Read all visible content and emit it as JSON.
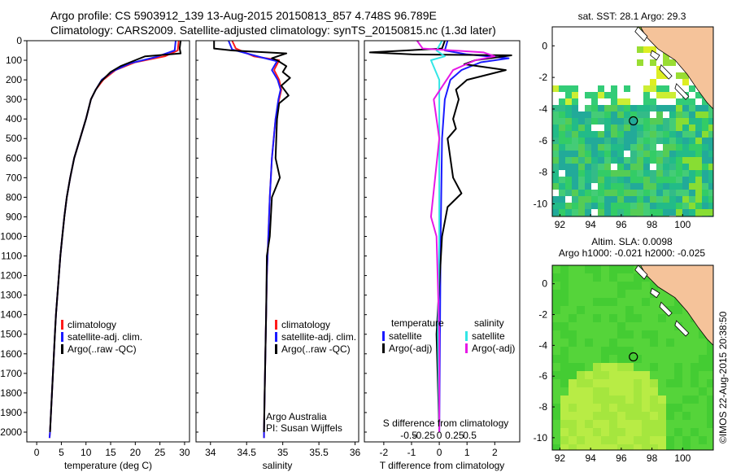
{
  "header": {
    "line1": "Argo profile: CS 5903912_139 13-Aug-2015 20150813_857 4.748S 96.789E",
    "line2": "Climatology: CARS2009. Satellite-adjusted climatology: synTS_20150815.nc (1.3d later)"
  },
  "colors": {
    "climatology": "#ff1a1a",
    "satellite": "#1a1aff",
    "argo": "#000000",
    "sal_satellite": "#33e6e6",
    "sal_argo": "#e619e6",
    "land": "#f5c39a",
    "sea_sst": "#22cc66",
    "sea_sla": "#55dd33",
    "sea_sla_light": "#c8f04a"
  },
  "chart_data": [
    {
      "type": "line",
      "name": "temperature-panel",
      "xlabel": "temperature (deg C)",
      "ylabel": "",
      "xlim": [
        -2,
        31
      ],
      "ylim": [
        2050,
        0
      ],
      "xticks": [
        "0",
        "5",
        "10",
        "15",
        "20",
        "25",
        "30"
      ],
      "xtick_values": [
        0,
        5,
        10,
        15,
        20,
        25,
        30
      ],
      "yticks": [
        "0",
        "100",
        "200",
        "300",
        "400",
        "500",
        "600",
        "700",
        "800",
        "900",
        "1000",
        "1100",
        "1200",
        "1300",
        "1400",
        "1500",
        "1600",
        "1700",
        "1800",
        "1900",
        "2000"
      ],
      "legend": [
        "climatology",
        "satellite-adj. clim.",
        "Argo(..raw -QC)"
      ],
      "series": [
        {
          "name": "climatology",
          "color": "#ff1a1a",
          "points": [
            [
              28.8,
              0
            ],
            [
              28.6,
              50
            ],
            [
              26,
              80
            ],
            [
              20,
              110
            ],
            [
              16,
              150
            ],
            [
              13.5,
              200
            ],
            [
              12,
              250
            ],
            [
              11,
              300
            ],
            [
              10,
              400
            ],
            [
              8.8,
              500
            ],
            [
              7.6,
              600
            ],
            [
              6.8,
              700
            ],
            [
              6.1,
              800
            ],
            [
              5.6,
              900
            ],
            [
              5.2,
              1000
            ],
            [
              4.8,
              1100
            ],
            [
              4.5,
              1200
            ],
            [
              4.2,
              1300
            ],
            [
              3.9,
              1400
            ],
            [
              3.7,
              1500
            ],
            [
              3.5,
              1600
            ],
            [
              3.3,
              1700
            ],
            [
              3.1,
              1800
            ],
            [
              2.9,
              1900
            ],
            [
              2.7,
              2000
            ],
            [
              2.6,
              2030
            ]
          ]
        },
        {
          "name": "satellite-adj. clim.",
          "color": "#1a1aff",
          "points": [
            [
              28.2,
              0
            ],
            [
              28,
              50
            ],
            [
              24,
              85
            ],
            [
              19,
              115
            ],
            [
              15.5,
              155
            ],
            [
              13.2,
              200
            ],
            [
              12,
              250
            ],
            [
              11,
              300
            ],
            [
              10,
              400
            ],
            [
              8.8,
              500
            ],
            [
              7.6,
              600
            ],
            [
              6.8,
              700
            ],
            [
              6.1,
              800
            ],
            [
              5.6,
              900
            ],
            [
              5.2,
              1000
            ],
            [
              4.8,
              1100
            ],
            [
              4.5,
              1200
            ],
            [
              4.2,
              1300
            ],
            [
              3.9,
              1400
            ],
            [
              3.7,
              1500
            ],
            [
              3.5,
              1600
            ],
            [
              3.3,
              1700
            ],
            [
              3.1,
              1800
            ],
            [
              2.9,
              1900
            ],
            [
              2.7,
              2000
            ],
            [
              2.6,
              2030
            ]
          ]
        },
        {
          "name": "Argo(..raw -QC)",
          "color": "#000000",
          "points": [
            [
              29.2,
              0
            ],
            [
              29,
              40
            ],
            [
              29.2,
              65
            ],
            [
              22,
              80
            ],
            [
              20,
              100
            ],
            [
              17,
              130
            ],
            [
              15,
              160
            ],
            [
              13,
              210
            ],
            [
              12,
              250
            ],
            [
              11,
              300
            ],
            [
              10,
              400
            ],
            [
              8.8,
              500
            ],
            [
              7.6,
              600
            ],
            [
              6.8,
              700
            ],
            [
              6.1,
              800
            ],
            [
              5.6,
              900
            ],
            [
              5.2,
              1000
            ],
            [
              4.8,
              1100
            ],
            [
              4.5,
              1200
            ],
            [
              4.2,
              1300
            ],
            [
              3.9,
              1400
            ],
            [
              3.7,
              1500
            ],
            [
              3.5,
              1600
            ],
            [
              3.3,
              1700
            ],
            [
              3.1,
              1800
            ],
            [
              2.9,
              1900
            ],
            [
              2.7,
              2000
            ]
          ]
        }
      ]
    },
    {
      "type": "line",
      "name": "salinity-panel",
      "xlabel": "salinity",
      "xlim": [
        33.8,
        36.05
      ],
      "ylim": [
        2050,
        0
      ],
      "xticks": [
        "34",
        "34.5",
        "35",
        "35.5",
        "36"
      ],
      "xtick_values": [
        34,
        34.5,
        35,
        35.5,
        36
      ],
      "legend": [
        "climatology",
        "satellite-adj. clim.",
        "Argo(..raw -QC)"
      ],
      "annotation": [
        "Argo Australia",
        "PI: Susan Wijffels"
      ],
      "series": [
        {
          "name": "climatology",
          "color": "#ff1a1a",
          "points": [
            [
              34.3,
              0
            ],
            [
              34.35,
              40
            ],
            [
              34.6,
              80
            ],
            [
              34.95,
              100
            ],
            [
              34.88,
              150
            ],
            [
              34.95,
              200
            ],
            [
              34.98,
              250
            ],
            [
              34.95,
              300
            ],
            [
              34.9,
              400
            ],
            [
              34.85,
              600
            ],
            [
              34.82,
              800
            ],
            [
              34.8,
              1000
            ],
            [
              34.78,
              1200
            ],
            [
              34.77,
              1400
            ],
            [
              34.76,
              1600
            ],
            [
              34.75,
              1800
            ],
            [
              34.74,
              2000
            ],
            [
              34.74,
              2030
            ]
          ]
        },
        {
          "name": "satellite-adj. clim.",
          "color": "#1a1aff",
          "points": [
            [
              34.25,
              0
            ],
            [
              34.3,
              45
            ],
            [
              34.7,
              85
            ],
            [
              34.92,
              105
            ],
            [
              34.85,
              150
            ],
            [
              34.93,
              200
            ],
            [
              34.97,
              250
            ],
            [
              34.94,
              300
            ],
            [
              34.9,
              400
            ],
            [
              34.85,
              600
            ],
            [
              34.82,
              800
            ],
            [
              34.8,
              1000
            ],
            [
              34.78,
              1200
            ],
            [
              34.77,
              1400
            ],
            [
              34.76,
              1600
            ],
            [
              34.75,
              1800
            ],
            [
              34.74,
              2000
            ],
            [
              34.74,
              2030
            ]
          ]
        },
        {
          "name": "Argo(..raw -QC)",
          "color": "#000000",
          "points": [
            [
              34.05,
              0
            ],
            [
              34.05,
              40
            ],
            [
              34.3,
              50
            ],
            [
              34.55,
              55
            ],
            [
              35.05,
              65
            ],
            [
              34.85,
              90
            ],
            [
              34.92,
              100
            ],
            [
              35.05,
              130
            ],
            [
              35.0,
              160
            ],
            [
              35.1,
              190
            ],
            [
              34.98,
              230
            ],
            [
              35.08,
              280
            ],
            [
              34.95,
              320
            ],
            [
              34.92,
              400
            ],
            [
              34.9,
              600
            ],
            [
              34.96,
              700
            ],
            [
              34.85,
              800
            ],
            [
              34.82,
              1000
            ],
            [
              34.78,
              1100
            ],
            [
              34.77,
              1400
            ],
            [
              34.76,
              1600
            ],
            [
              34.75,
              1800
            ],
            [
              34.74,
              2000
            ]
          ]
        }
      ]
    },
    {
      "type": "line",
      "name": "difference-panel",
      "xlabel": "T difference from climatology",
      "xlim": [
        -2.7,
        2.9
      ],
      "ylim": [
        2050,
        0
      ],
      "xticks": [
        "-2",
        "-1",
        "0",
        "1",
        "2"
      ],
      "xtick_values": [
        -2,
        -1,
        0,
        1,
        2
      ],
      "top_xlabel": "S difference from climatology",
      "top_xticks": [
        "-0.5",
        "-0.25",
        "0",
        "0.25",
        "0.5"
      ],
      "top_xtick_values": [
        -1.1,
        -0.55,
        0,
        0.55,
        1.1
      ],
      "legend_titles": [
        "temperature",
        "salinity"
      ],
      "legend_left": [
        "satellite",
        "Argo(-adj)"
      ],
      "legend_right": [
        "satellite",
        "Argo(-adj)"
      ],
      "series": [
        {
          "name": "temperature satellite",
          "color": "#1a1aff",
          "points": [
            [
              0.3,
              0
            ],
            [
              0.2,
              50
            ],
            [
              1.0,
              70
            ],
            [
              2.5,
              90
            ],
            [
              1.5,
              110
            ],
            [
              0.8,
              150
            ],
            [
              0.4,
              200
            ],
            [
              0.2,
              300
            ],
            [
              0.1,
              500
            ],
            [
              0.05,
              1000
            ],
            [
              0,
              2000
            ]
          ]
        },
        {
          "name": "temperature Argo(-adj)",
          "color": "#000000",
          "points": [
            [
              0.2,
              0
            ],
            [
              0.1,
              40
            ],
            [
              -2.5,
              60
            ],
            [
              -1,
              70
            ],
            [
              2.6,
              75
            ],
            [
              1.3,
              100
            ],
            [
              0.9,
              120
            ],
            [
              2.4,
              150
            ],
            [
              1.0,
              200
            ],
            [
              0.6,
              250
            ],
            [
              0.7,
              300
            ],
            [
              0.5,
              400
            ],
            [
              0.6,
              450
            ],
            [
              0.3,
              500
            ],
            [
              0.4,
              600
            ],
            [
              0.5,
              700
            ],
            [
              0.8,
              780
            ],
            [
              0.3,
              850
            ],
            [
              0.1,
              1000
            ],
            [
              -0.1,
              1500
            ],
            [
              0,
              2000
            ]
          ]
        },
        {
          "name": "salinity satellite",
          "color": "#33e6e6",
          "points": [
            [
              0.1,
              0
            ],
            [
              -0.1,
              50
            ],
            [
              0.2,
              80
            ],
            [
              -0.3,
              100
            ],
            [
              0,
              200
            ],
            [
              0,
              500
            ],
            [
              0,
              1000
            ],
            [
              -0.05,
              1500
            ],
            [
              0,
              2000
            ]
          ]
        },
        {
          "name": "salinity Argo(-adj)",
          "color": "#e619e6",
          "points": [
            [
              -0.8,
              0
            ],
            [
              -0.6,
              40
            ],
            [
              1.6,
              60
            ],
            [
              2.0,
              80
            ],
            [
              1.3,
              100
            ],
            [
              0.5,
              150
            ],
            [
              -0.2,
              300
            ],
            [
              0,
              500
            ],
            [
              -0.3,
              900
            ],
            [
              -0.1,
              1000
            ],
            [
              0,
              1500
            ],
            [
              0,
              2000
            ]
          ]
        }
      ]
    },
    {
      "type": "heatmap",
      "name": "sst-map",
      "title": "sat. SST: 28.1 Argo: 29.3",
      "xticks": [
        "92",
        "94",
        "96",
        "98",
        "100"
      ],
      "xtick_values": [
        92,
        94,
        96,
        98,
        100
      ],
      "yticks": [
        "0",
        "-2",
        "-4",
        "-6",
        "-8",
        "-10"
      ],
      "ytick_values": [
        0,
        -2,
        -4,
        -6,
        -8,
        -10
      ],
      "xlim": [
        91.5,
        102
      ],
      "ylim": [
        -10.8,
        1.2
      ],
      "marker": {
        "lon": 96.789,
        "lat": -4.748
      }
    },
    {
      "type": "heatmap",
      "name": "sla-map",
      "title": "Altim. SLA: 0.0098",
      "subtitle": "Argo h1000: -0.021 h2000: -0.025",
      "xticks": [
        "92",
        "94",
        "96",
        "98",
        "100"
      ],
      "xtick_values": [
        92,
        94,
        96,
        98,
        100
      ],
      "yticks": [
        "0",
        "-2",
        "-4",
        "-6",
        "-8",
        "-10"
      ],
      "ytick_values": [
        0,
        -2,
        -4,
        -6,
        -8,
        -10
      ],
      "xlim": [
        91.5,
        102
      ],
      "ylim": [
        -10.8,
        1.2
      ],
      "marker": {
        "lon": 96.789,
        "lat": -4.748
      }
    }
  ],
  "footer": {
    "credit": "©IMOS 22-Aug-2015 20:38:50"
  }
}
